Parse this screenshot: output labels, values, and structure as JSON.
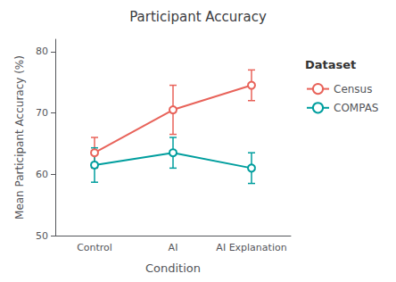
{
  "chart_data": {
    "type": "line",
    "title": "Participant Accuracy",
    "x_label": "Condition",
    "y_label": "Mean Participant Accuracy (%)",
    "categories": [
      "Control",
      "AI",
      "AI Explanation"
    ],
    "series": [
      {
        "name": "Census",
        "color": "#E8635A",
        "values": [
          63.5,
          70.5,
          74.5
        ],
        "errors": [
          2.5,
          4.0,
          2.5
        ]
      },
      {
        "name": "COMPAS",
        "color": "#009E9E",
        "values": [
          61.5,
          63.5,
          61.0
        ],
        "errors": [
          2.8,
          2.5,
          2.5
        ]
      }
    ],
    "ylim": [
      50,
      82
    ],
    "yticks": [
      50,
      60,
      70,
      80
    ],
    "grid": false,
    "legend": "right",
    "legend_title": "Dataset",
    "marker": "circle"
  }
}
